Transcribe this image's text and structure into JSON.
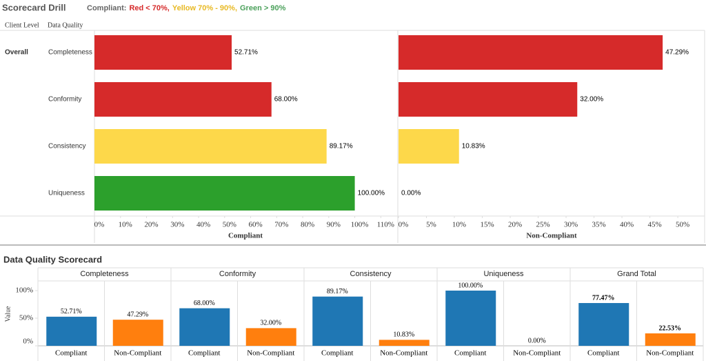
{
  "dashboard": {
    "title": "Scorecard Drill",
    "legend": [
      {
        "text": "Compliant:",
        "color": "#666666"
      },
      {
        "text": "Red < 70%,",
        "color": "#d62a2a"
      },
      {
        "text": "Yellow 70% - 90%,",
        "color": "#e8b923"
      },
      {
        "text": "Green > 90%",
        "color": "#4aa05a"
      }
    ],
    "column_headers": [
      "Client Level",
      "Data Quality"
    ],
    "row_header": "Overall"
  },
  "chart_data": [
    {
      "type": "hbar",
      "categories": [
        "Completeness",
        "Conformity",
        "Consistency",
        "Uniqueness"
      ],
      "colors": [
        "#d62a2a",
        "#d62a2a",
        "#fdd84a",
        "#2ca02c"
      ],
      "panels": [
        {
          "xlabel": "Compliant",
          "values": [
            52.71,
            68.0,
            89.17,
            100.0
          ],
          "value_labels": [
            "52.71%",
            "68.00%",
            "89.17%",
            "100.00%"
          ],
          "xlim": [
            0,
            116
          ],
          "xticks": [
            {
              "value": 0,
              "label": "0%"
            },
            {
              "value": 10,
              "label": "10%"
            },
            {
              "value": 20,
              "label": "20%"
            },
            {
              "value": 30,
              "label": "30%"
            },
            {
              "value": 40,
              "label": "40%"
            },
            {
              "value": 50,
              "label": "50%"
            },
            {
              "value": 60,
              "label": "60%"
            },
            {
              "value": 70,
              "label": "70%"
            },
            {
              "value": 80,
              "label": "80%"
            },
            {
              "value": 90,
              "label": "90%"
            },
            {
              "value": 100,
              "label": "100%"
            },
            {
              "value": 110,
              "label": "110%"
            }
          ]
        },
        {
          "xlabel": "Non-Compliant",
          "values": [
            47.29,
            32.0,
            10.83,
            0.0
          ],
          "value_labels": [
            "47.29%",
            "32.00%",
            "10.83%",
            "0.00%"
          ],
          "xlim": [
            0,
            54.8
          ],
          "xticks": [
            {
              "value": 0,
              "label": "0%"
            },
            {
              "value": 5,
              "label": "5%"
            },
            {
              "value": 10,
              "label": "10%"
            },
            {
              "value": 15,
              "label": "15%"
            },
            {
              "value": 20,
              "label": "20%"
            },
            {
              "value": 25,
              "label": "25%"
            },
            {
              "value": 30,
              "label": "30%"
            },
            {
              "value": 35,
              "label": "35%"
            },
            {
              "value": 40,
              "label": "40%"
            },
            {
              "value": 45,
              "label": "45%"
            },
            {
              "value": 50,
              "label": "50%"
            }
          ]
        }
      ]
    },
    {
      "type": "grouped_bar",
      "title": "Data Quality Scorecard",
      "ylabel": "Value",
      "categories": [
        "Completeness",
        "Conformity",
        "Consistency",
        "Uniqueness",
        "Grand Total"
      ],
      "series": [
        {
          "name": "Compliant",
          "color": "#1f77b4",
          "values": [
            52.71,
            68.0,
            89.17,
            100.0,
            77.47
          ],
          "value_labels": [
            "52.71%",
            "68.00%",
            "89.17%",
            "100.00%",
            "77.47%"
          ]
        },
        {
          "name": "Non-Compliant",
          "color": "#ff7f0e",
          "values": [
            47.29,
            32.0,
            10.83,
            0.0,
            22.53
          ],
          "value_labels": [
            "47.29%",
            "32.00%",
            "10.83%",
            "0.00%",
            "22.53%"
          ]
        }
      ],
      "ylim": [
        0,
        117.5
      ],
      "yticks": [
        {
          "value": 0,
          "label": "0%"
        },
        {
          "value": 50,
          "label": "50%"
        },
        {
          "value": 100,
          "label": "100%"
        }
      ],
      "bold_last_category_labels": true
    }
  ]
}
